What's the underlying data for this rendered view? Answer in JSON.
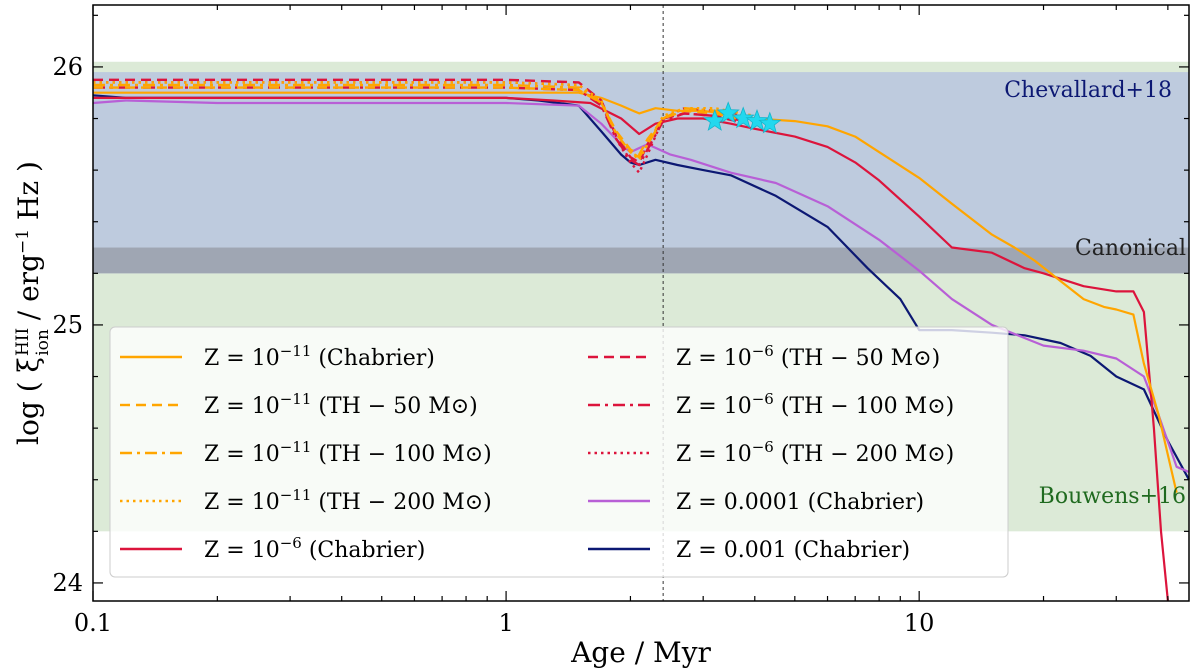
{
  "chart_data": {
    "type": "line",
    "xlabel": "Age / Myr",
    "ylabel_main": "log ( ξ",
    "ylabel_sup": "HII",
    "ylabel_sub": "ion",
    "ylabel_tail": " / erg",
    "ylabel_exp": "−1",
    "ylabel_end": " Hz )",
    "xscale": "log",
    "xlim": [
      0.1,
      45
    ],
    "ylim": [
      23.93,
      26.24
    ],
    "xticks": [
      {
        "value": 0.1,
        "label": "0.1"
      },
      {
        "value": 1,
        "label": "1"
      },
      {
        "value": 10,
        "label": "10"
      }
    ],
    "yticks": [
      {
        "value": 24,
        "label": "24"
      },
      {
        "value": 25,
        "label": "25"
      },
      {
        "value": 26,
        "label": "26"
      }
    ],
    "bands": [
      {
        "name": "Bouwens+16",
        "y0": 24.2,
        "y1": 26.02,
        "color": "#d6e6d0"
      },
      {
        "name": "Chevallard+18",
        "y0": 25.2,
        "y1": 25.98,
        "color": "#b9c6df"
      },
      {
        "name": "Canonical",
        "y0": 25.2,
        "y1": 25.3,
        "color": "#9aa0ab"
      }
    ],
    "band_labels": {
      "chevallard": {
        "text": "Chevallard+18",
        "color": "#0c1873"
      },
      "canonical": {
        "text": "Canonical",
        "color": "#222222"
      },
      "bouwens": {
        "text": "Bouwens+16",
        "color": "#1f6a1f"
      }
    },
    "vline_x": 2.4,
    "stars": {
      "color": "#22d8ee",
      "points": [
        [
          3.2,
          25.79
        ],
        [
          3.45,
          25.82
        ],
        [
          3.75,
          25.8
        ],
        [
          4.05,
          25.79
        ],
        [
          4.35,
          25.78
        ]
      ]
    },
    "series": [
      {
        "name": "Z = 10^{−11} (Chabrier)",
        "name_base": "Z = 10",
        "name_exp": "−11",
        "name_tail": " (Chabrier)",
        "color": "#ffa500",
        "dash": "solid",
        "x": [
          0.1,
          0.5,
          1.0,
          1.5,
          1.7,
          1.9,
          2.1,
          2.3,
          2.6,
          3.0,
          4.0,
          5.0,
          6.0,
          7.0,
          8.0,
          10.0,
          12.0,
          15.0,
          17.0,
          19.0,
          22.0,
          25.0,
          28.0,
          30.0,
          33.0,
          35.0,
          38.0,
          42.0
        ],
        "y": [
          25.9,
          25.9,
          25.9,
          25.9,
          25.88,
          25.85,
          25.82,
          25.84,
          25.83,
          25.83,
          25.8,
          25.79,
          25.77,
          25.73,
          25.67,
          25.57,
          25.47,
          25.35,
          25.3,
          25.25,
          25.17,
          25.1,
          25.07,
          25.06,
          25.04,
          24.85,
          24.65,
          24.35
        ]
      },
      {
        "name": "Z = 10^{−11} (TH − 50 M⊙)",
        "name_base": "Z = 10",
        "name_exp": "−11",
        "name_tail": " (TH − 50 M⊙)",
        "color": "#ffa500",
        "dash": "dashed",
        "x": [
          0.1,
          1.0,
          1.5,
          1.7,
          1.85,
          2.0,
          2.1,
          2.2,
          2.4,
          2.7,
          3.2,
          3.6
        ],
        "y": [
          25.92,
          25.92,
          25.91,
          25.86,
          25.75,
          25.68,
          25.66,
          25.72,
          25.8,
          25.83,
          25.82,
          25.8
        ]
      },
      {
        "name": "Z = 10^{−11} (TH − 100 M⊙)",
        "name_base": "Z = 10",
        "name_exp": "−11",
        "name_tail": " (TH − 100 M⊙)",
        "color": "#ffa500",
        "dash": "dashdot",
        "x": [
          0.1,
          1.0,
          1.5,
          1.7,
          1.85,
          2.0,
          2.1,
          2.2,
          2.4,
          2.7,
          3.2,
          3.8
        ],
        "y": [
          25.93,
          25.93,
          25.92,
          25.86,
          25.74,
          25.67,
          25.65,
          25.7,
          25.8,
          25.84,
          25.83,
          25.8
        ]
      },
      {
        "name": "Z = 10^{−11} (TH − 200 M⊙)",
        "name_base": "Z = 10",
        "name_exp": "−11",
        "name_tail": " (TH − 200 M⊙)",
        "color": "#ffa500",
        "dash": "dotted",
        "x": [
          0.1,
          1.0,
          1.5,
          1.7,
          1.85,
          2.0,
          2.1,
          2.2,
          2.4,
          2.7,
          3.2,
          4.0
        ],
        "y": [
          25.94,
          25.94,
          25.93,
          25.87,
          25.74,
          25.67,
          25.64,
          25.7,
          25.81,
          25.84,
          25.84,
          25.81
        ]
      },
      {
        "name": "Z = 10^{−6} (Chabrier)",
        "name_base": "Z = 10",
        "name_exp": "−6",
        "name_tail": " (Chabrier)",
        "color": "#dc143c",
        "dash": "solid",
        "x": [
          0.1,
          0.5,
          1.0,
          1.3,
          1.6,
          1.9,
          2.1,
          2.3,
          2.6,
          3.0,
          3.5,
          4.0,
          5.0,
          6.0,
          7.0,
          8.0,
          10.0,
          12.0,
          15.0,
          18.0,
          20.0,
          25.0,
          30.0,
          33.0,
          35.0,
          37.0,
          38.5,
          40.0
        ],
        "y": [
          25.88,
          25.88,
          25.88,
          25.87,
          25.86,
          25.8,
          25.74,
          25.78,
          25.8,
          25.8,
          25.78,
          25.76,
          25.73,
          25.69,
          25.63,
          25.56,
          25.42,
          25.3,
          25.28,
          25.22,
          25.2,
          25.15,
          25.13,
          25.13,
          25.05,
          24.6,
          24.2,
          23.93
        ]
      },
      {
        "name": "Z = 10^{−6} (TH − 50 M⊙)",
        "name_base": "Z = 10",
        "name_exp": "−6",
        "name_tail": " (TH − 50 M⊙)",
        "color": "#dc143c",
        "dash": "dashed",
        "x": [
          0.1,
          1.0,
          1.5,
          1.7,
          1.85,
          2.0,
          2.1,
          2.2,
          2.4,
          2.7,
          3.2,
          3.6
        ],
        "y": [
          25.95,
          25.95,
          25.94,
          25.87,
          25.73,
          25.65,
          25.63,
          25.7,
          25.8,
          25.82,
          25.81,
          25.79
        ]
      },
      {
        "name": "Z = 10^{−6} (TH − 100 M⊙)",
        "name_base": "Z = 10",
        "name_exp": "−6",
        "name_tail": " (TH − 100 M⊙)",
        "color": "#dc143c",
        "dash": "dashdot",
        "x": [
          0.1,
          1.0,
          1.5,
          1.7,
          1.85,
          2.0,
          2.1,
          2.2,
          2.4,
          2.7,
          3.2,
          3.8
        ],
        "y": [
          25.92,
          25.92,
          25.91,
          25.85,
          25.72,
          25.64,
          25.62,
          25.68,
          25.79,
          25.82,
          25.81,
          25.79
        ]
      },
      {
        "name": "Z = 10^{−6} (TH − 200 M⊙)",
        "name_base": "Z = 10",
        "name_exp": "−6",
        "name_tail": " (TH − 200 M⊙)",
        "color": "#dc143c",
        "dash": "dotted",
        "x": [
          0.1,
          1.0,
          1.5,
          1.7,
          1.85,
          2.0,
          2.1,
          2.2,
          2.4,
          2.7,
          3.2,
          4.0
        ],
        "y": [
          25.94,
          25.94,
          25.93,
          25.86,
          25.72,
          25.63,
          25.59,
          25.66,
          25.8,
          25.84,
          25.83,
          25.8
        ]
      },
      {
        "name": "Z = 0.0001 (Chabrier)",
        "name_base": "Z = 0.0001 (Chabrier)",
        "name_exp": "",
        "name_tail": "",
        "color": "#b85fd6",
        "dash": "solid",
        "x": [
          0.1,
          0.12,
          0.2,
          0.5,
          1.0,
          1.5,
          1.7,
          1.9,
          2.0,
          2.2,
          2.5,
          2.8,
          3.5,
          4.5,
          6.0,
          8.0,
          10.0,
          12.0,
          15.0,
          20.0,
          25.0,
          30.0,
          35.0,
          38.0,
          42.0,
          45.0
        ],
        "y": [
          25.86,
          25.87,
          25.86,
          25.86,
          25.86,
          25.85,
          25.78,
          25.7,
          25.67,
          25.7,
          25.66,
          25.64,
          25.59,
          25.55,
          25.46,
          25.33,
          25.21,
          25.1,
          25.0,
          24.92,
          24.9,
          24.87,
          24.8,
          24.65,
          24.45,
          24.43
        ]
      },
      {
        "name": "Z = 0.001 (Chabrier)",
        "name_base": "Z = 0.001 (Chabrier)",
        "name_exp": "",
        "name_tail": "",
        "color": "#0c1873",
        "dash": "solid",
        "x": [
          0.1,
          0.12,
          0.2,
          0.5,
          1.0,
          1.2,
          1.5,
          1.7,
          1.9,
          2.0,
          2.1,
          2.3,
          2.6,
          3.0,
          3.5,
          4.5,
          6.0,
          7.5,
          9.0,
          10.0,
          12.0,
          15.0,
          18.0,
          22.0,
          26.0,
          30.0,
          35.0,
          40.0,
          45.0
        ],
        "y": [
          25.89,
          25.88,
          25.88,
          25.88,
          25.88,
          25.87,
          25.85,
          25.75,
          25.66,
          25.63,
          25.62,
          25.64,
          25.62,
          25.6,
          25.58,
          25.5,
          25.38,
          25.22,
          25.1,
          24.98,
          24.98,
          24.97,
          24.96,
          24.93,
          24.88,
          24.8,
          24.75,
          24.55,
          24.4
        ]
      }
    ]
  }
}
